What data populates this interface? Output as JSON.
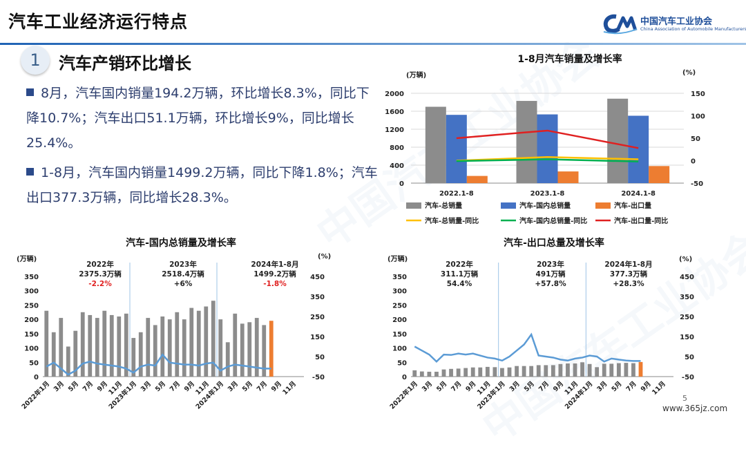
{
  "header": {
    "title": "汽车工业经济运行特点"
  },
  "logo": {
    "cn": "中国汽车工业协会",
    "en": "China Association of Automobile Manufacturers",
    "mark": "CAAM"
  },
  "section": {
    "number": "1",
    "title": "汽车产销环比增长"
  },
  "bullets": [
    "8月，汽车国内销量194.2万辆，环比增长8.3%，同比下降10.7%；汽车出口51.1万辆，环比增长9%，同比增长25.4%。",
    "1-8月，汽车国内销量1499.2万辆，同比下降1.8%；汽车出口377.3万辆，同比增长28.3%。"
  ],
  "watermark": "中国汽车工业协会",
  "page_number": "5",
  "site": "www.365jz.com",
  "colors": {
    "total": "#8c8c8c",
    "domestic": "#4472c4",
    "export": "#ed7d31",
    "yoy_total": "#ffc000",
    "yoy_dom": "#00b050",
    "yoy_exp": "#e02020",
    "line_blue": "#5b9bd5",
    "hdr_rule": "#1f63b5"
  },
  "chart_data": [
    {
      "type": "bar",
      "title": "1-8月汽车销量及增长率",
      "y_unit": "(万辆)",
      "y2_unit": "(%)",
      "categories": [
        "2022.1-8",
        "2023.1-8",
        "2024.1-8"
      ],
      "ylim": [
        0,
        2000
      ],
      "yticks": [
        0,
        400,
        800,
        1200,
        1600,
        2000
      ],
      "y2lim": [
        -50,
        150
      ],
      "y2ticks": [
        -50,
        0,
        50,
        100,
        150
      ],
      "series": [
        {
          "name": "汽车-总销量",
          "kind": "bar",
          "values": [
            1700,
            1830,
            1880
          ]
        },
        {
          "name": "汽车-国内总销量",
          "kind": "bar",
          "values": [
            1520,
            1530,
            1500
          ]
        },
        {
          "name": "汽车-出口量",
          "kind": "bar",
          "values": [
            160,
            260,
            380
          ]
        },
        {
          "name": "汽车-总销量-同比",
          "kind": "line",
          "axis": "y2",
          "values": [
            0,
            8,
            3
          ]
        },
        {
          "name": "汽车-国内总销量-同比",
          "kind": "line",
          "axis": "y2",
          "values": [
            -1,
            3,
            -2
          ]
        },
        {
          "name": "汽车-出口量-同比",
          "kind": "line",
          "axis": "y2",
          "values": [
            50,
            67,
            28
          ]
        }
      ],
      "legend_position": "bottom",
      "grid": true
    },
    {
      "type": "bar",
      "title": "汽车-国内总销量及增长率",
      "y_unit": "(万辆)",
      "y2_unit": "(%)",
      "ylim": [
        0,
        350
      ],
      "yticks": [
        0,
        50,
        100,
        150,
        200,
        250,
        300,
        350
      ],
      "y2lim": [
        -50,
        450
      ],
      "y2ticks": [
        -50,
        50,
        150,
        250,
        350,
        450
      ],
      "x_tick_labels": [
        "2022年1月",
        "3月",
        "5月",
        "7月",
        "9月",
        "11月",
        "2023年1月",
        "3月",
        "5月",
        "7月",
        "9月",
        "11月",
        "2024年1月",
        "3月",
        "5月",
        "7月",
        "9月",
        "11月"
      ],
      "bar_values": [
        230,
        155,
        205,
        105,
        160,
        225,
        215,
        205,
        230,
        215,
        210,
        220,
        135,
        155,
        205,
        180,
        210,
        200,
        225,
        200,
        240,
        230,
        245,
        265,
        200,
        120,
        220,
        185,
        190,
        205,
        180,
        195,
        0,
        0,
        0,
        0
      ],
      "line_values": [
        0,
        20,
        -10,
        -40,
        -20,
        15,
        25,
        15,
        10,
        5,
        0,
        -10,
        -30,
        0,
        10,
        5,
        60,
        20,
        15,
        10,
        10,
        5,
        15,
        20,
        -20,
        0,
        10,
        5,
        0,
        -5,
        -10,
        -10,
        null,
        null,
        null,
        null
      ],
      "highlight_index": 31,
      "annotations": [
        {
          "year": "2022年",
          "value": "2375.3万辆",
          "change": "-2.2%",
          "change_color": "#e02020"
        },
        {
          "year": "2023年",
          "value": "2518.4万辆",
          "change": "+6%",
          "change_color": "#222222"
        },
        {
          "year": "2024年1-8月",
          "value": "1499.2万辆",
          "change": "-1.8%",
          "change_color": "#e02020"
        }
      ]
    },
    {
      "type": "bar",
      "title": "汽车-出口总量及增长率",
      "y_unit": "(万辆)",
      "y2_unit": "(%)",
      "ylim": [
        0,
        350
      ],
      "yticks": [
        0,
        50,
        100,
        150,
        200,
        250,
        300,
        350
      ],
      "y2lim": [
        -50,
        450
      ],
      "y2ticks": [
        -50,
        50,
        150,
        250,
        350,
        450
      ],
      "x_tick_labels": [
        "2022年1月",
        "3月",
        "5月",
        "7月",
        "9月",
        "11月",
        "2023年1月",
        "3月",
        "5月",
        "7月",
        "9月",
        "11月",
        "2024年1月",
        "3月",
        "5月",
        "7月",
        "9月",
        "11月"
      ],
      "bar_values": [
        22,
        18,
        17,
        17,
        25,
        27,
        28,
        30,
        32,
        32,
        34,
        33,
        30,
        32,
        37,
        37,
        37,
        40,
        40,
        40,
        44,
        46,
        46,
        50,
        44,
        33,
        45,
        45,
        47,
        48,
        47,
        51,
        0,
        0,
        0,
        0
      ],
      "line_values": [
        100,
        80,
        60,
        25,
        60,
        58,
        65,
        60,
        65,
        55,
        45,
        40,
        30,
        50,
        80,
        110,
        160,
        55,
        50,
        45,
        35,
        30,
        40,
        45,
        55,
        50,
        25,
        40,
        35,
        30,
        28,
        28,
        null,
        null,
        null,
        null
      ],
      "highlight_index": 31,
      "annotations": [
        {
          "year": "2022年",
          "value": "311.1万辆",
          "change": "54.4%",
          "change_color": "#222222"
        },
        {
          "year": "2023年",
          "value": "491万辆",
          "change": "+57.8%",
          "change_color": "#222222"
        },
        {
          "year": "2024年1-8月",
          "value": "377.3万辆",
          "change": "+28.3%",
          "change_color": "#222222"
        }
      ]
    }
  ]
}
